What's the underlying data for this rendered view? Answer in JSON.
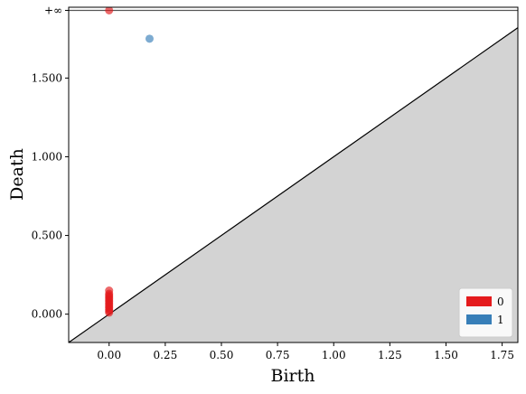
{
  "chart_data": {
    "type": "scatter",
    "xlabel": "Birth",
    "ylabel": "Death",
    "xlim": [
      -0.18,
      1.82
    ],
    "ylim": [
      -0.18,
      1.95
    ],
    "x_ticks": [
      0.0,
      0.25,
      0.5,
      0.75,
      1.0,
      1.25,
      1.5,
      1.75
    ],
    "x_tick_labels": [
      "0.00",
      "0.25",
      "0.50",
      "0.75",
      "1.00",
      "1.25",
      "1.50",
      "1.75"
    ],
    "y_ticks": [
      0.0,
      0.5,
      1.0,
      1.5
    ],
    "y_tick_labels": [
      "0.000",
      "0.500",
      "1.000",
      "1.500"
    ],
    "infinity": {
      "y": 1.93,
      "label": "+∞"
    },
    "diagonal": true,
    "legend_position": "bottom-right",
    "series": [
      {
        "name": "0",
        "color": "#e41a1c",
        "points": [
          [
            0.0,
            1.93
          ],
          [
            0.0,
            0.15
          ],
          [
            0.0,
            0.13
          ],
          [
            0.0,
            0.12
          ],
          [
            0.0,
            0.11
          ],
          [
            0.0,
            0.1
          ],
          [
            0.0,
            0.09
          ],
          [
            0.0,
            0.08
          ],
          [
            0.0,
            0.07
          ],
          [
            0.0,
            0.06
          ],
          [
            0.0,
            0.05
          ],
          [
            0.0,
            0.04
          ],
          [
            0.0,
            0.03
          ],
          [
            0.0,
            0.02
          ],
          [
            0.0,
            0.01
          ]
        ]
      },
      {
        "name": "1",
        "color": "#377eb8",
        "points": [
          [
            0.18,
            1.75
          ]
        ]
      }
    ]
  }
}
